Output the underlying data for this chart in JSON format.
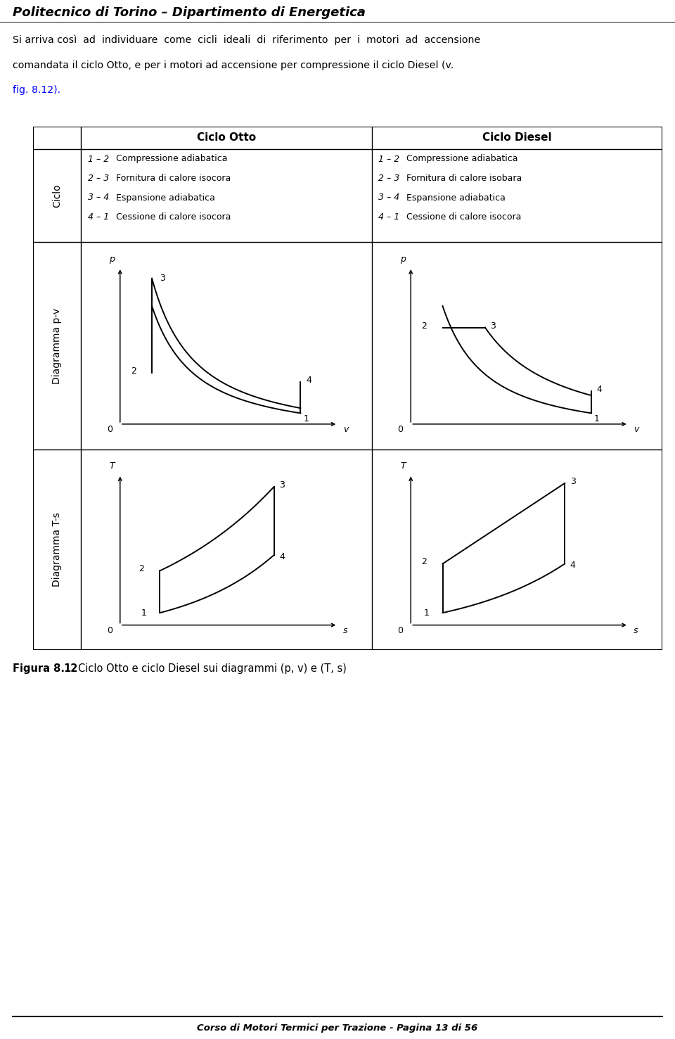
{
  "header_title": "Politecnico di Torino – Dipartimento di Energetica",
  "footer_text": "Corso di Motori Termici per Trazione - Pagina 13 di 56",
  "body_line1": "Si arriva così  ad  individuare  come  cicli  ideali  di  riferimento  per  i  motori  ad  accensione",
  "body_line2": "comandata il ciclo Otto, e per i motori ad accensione per compressione il ciclo Diesel (v.",
  "body_line3": "fig. 8.12).",
  "table_headers": [
    "Ciclo Otto",
    "Ciclo Diesel"
  ],
  "row_label_ciclo": "Ciclo",
  "row_label_pv": "Diagramma p-v",
  "row_label_ts": "Diagramma T-s",
  "otto_steps": [
    [
      "1 – 2",
      "Compressione adiabatica"
    ],
    [
      "2 – 3",
      "Fornitura di calore isocora"
    ],
    [
      "3 – 4",
      "Espansione adiabatica"
    ],
    [
      "4 – 1",
      "Cessione di calore isocora"
    ]
  ],
  "diesel_steps": [
    [
      "1 – 2",
      "Compressione adiabatica"
    ],
    [
      "2 – 3",
      "Fornitura di calore isobara"
    ],
    [
      "3 – 4",
      "Espansione adiabatica"
    ],
    [
      "4 – 1",
      "Cessione di calore isocora"
    ]
  ],
  "figure_caption_bold": "Figura 8. 12",
  "figure_caption_rest": " Ciclo Otto e ciclo Diesel sui diagrammi (p, v) e (T, s)",
  "background_color": "#ffffff",
  "line_color": "#000000"
}
